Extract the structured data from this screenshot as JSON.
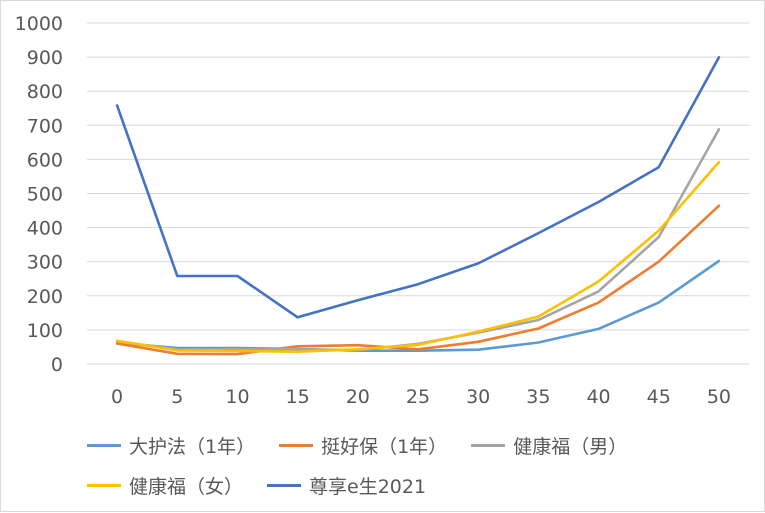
{
  "chart_data": {
    "type": "line",
    "title": "",
    "xlabel": "",
    "ylabel": "",
    "categories": [
      "0",
      "5",
      "10",
      "15",
      "20",
      "25",
      "30",
      "35",
      "40",
      "45",
      "50"
    ],
    "ylim": [
      0,
      1000
    ],
    "yticks": [
      "0",
      "100",
      "200",
      "300",
      "400",
      "500",
      "600",
      "700",
      "800",
      "900",
      "1000"
    ],
    "grid": true,
    "legend_position": "bottom",
    "series": [
      {
        "name": "大护法（1年）",
        "color": "#5b9bd5",
        "values": [
          62,
          47,
          47,
          44,
          39,
          39,
          42,
          63,
          103,
          180,
          302
        ]
      },
      {
        "name": "挺好保（1年）",
        "color": "#ed7d31",
        "values": [
          60,
          30,
          29,
          52,
          55,
          43,
          65,
          104,
          180,
          300,
          464
        ]
      },
      {
        "name": "健康福（男）",
        "color": "#a5a5a5",
        "values": [
          67,
          42,
          43,
          43,
          41,
          59,
          92,
          129,
          213,
          372,
          688
        ]
      },
      {
        "name": "健康福（女）",
        "color": "#ffc000",
        "values": [
          68,
          40,
          38,
          36,
          43,
          56,
          95,
          139,
          242,
          391,
          592
        ]
      },
      {
        "name": "尊享e生2021",
        "color": "#4472c4",
        "values": [
          758,
          258,
          258,
          137,
          187,
          234,
          295,
          384,
          475,
          577,
          899
        ]
      }
    ]
  }
}
